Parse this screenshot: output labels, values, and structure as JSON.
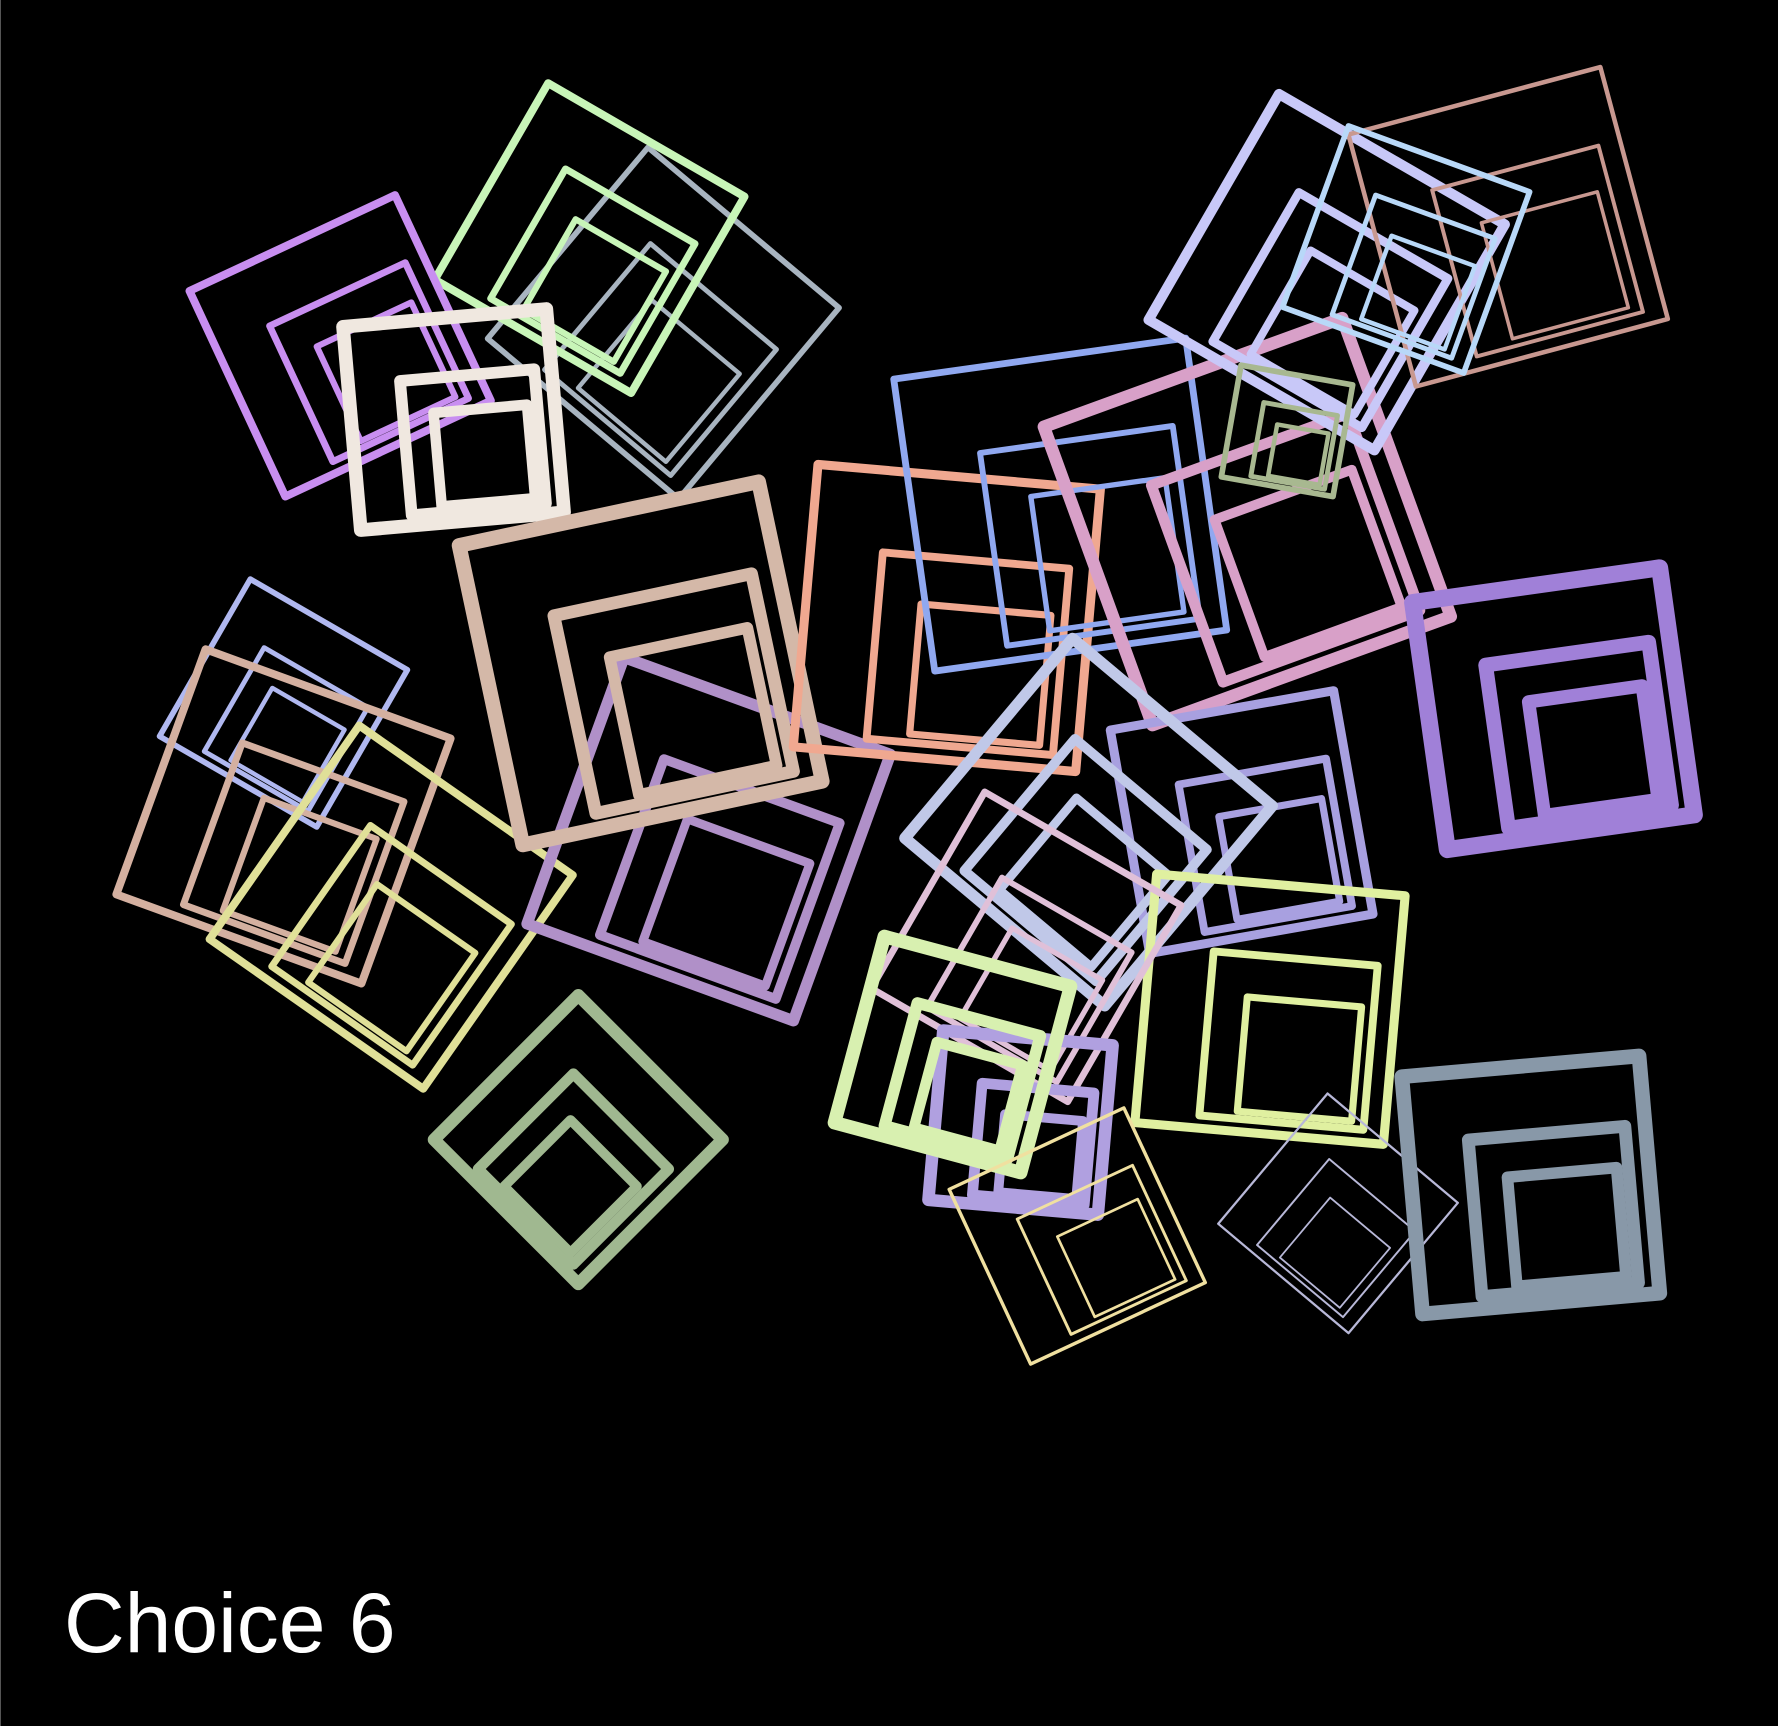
{
  "label": "Choice 6"
}
